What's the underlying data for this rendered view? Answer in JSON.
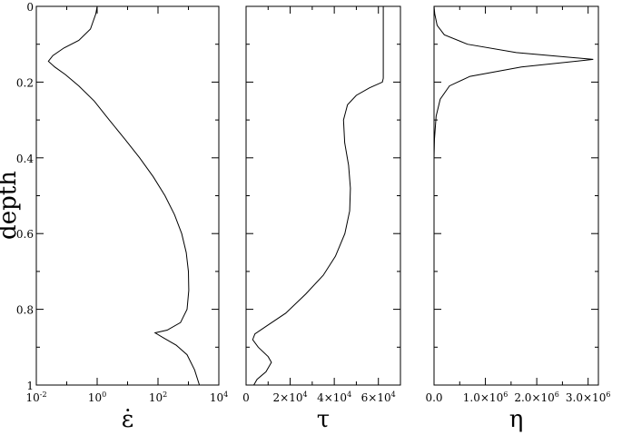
{
  "ylabel": "depth",
  "y_ticks": [
    "0",
    "0.2",
    "0.4",
    "0.6",
    "0.8",
    "1"
  ],
  "chart_data": [
    {
      "type": "line",
      "xlabel": "ε̇",
      "x_scale": "log",
      "xlim": [
        0.01,
        10000
      ],
      "ylim": [
        0,
        1
      ],
      "y_inverted": true,
      "x_ticks": [
        {
          "base": "10",
          "exp": "-2",
          "value": 0.01
        },
        {
          "base": "10",
          "exp": "0",
          "value": 1
        },
        {
          "base": "10",
          "exp": "2",
          "value": 100
        },
        {
          "base": "10",
          "exp": "4",
          "value": 10000
        }
      ],
      "series": [
        {
          "points": [
            [
              1.0,
              0.0
            ],
            [
              0.9,
              0.02
            ],
            [
              0.6,
              0.06
            ],
            [
              0.25,
              0.09
            ],
            [
              0.08,
              0.11
            ],
            [
              0.035,
              0.13
            ],
            [
              0.025,
              0.145
            ],
            [
              0.04,
              0.16
            ],
            [
              0.09,
              0.18
            ],
            [
              0.25,
              0.21
            ],
            [
              0.8,
              0.25
            ],
            [
              2.5,
              0.3
            ],
            [
              8,
              0.35
            ],
            [
              25,
              0.4
            ],
            [
              70,
              0.45
            ],
            [
              170,
              0.5
            ],
            [
              350,
              0.55
            ],
            [
              600,
              0.6
            ],
            [
              850,
              0.65
            ],
            [
              1000,
              0.7
            ],
            [
              1030,
              0.75
            ],
            [
              900,
              0.8
            ],
            [
              550,
              0.835
            ],
            [
              200,
              0.855
            ],
            [
              80,
              0.862
            ],
            [
              150,
              0.875
            ],
            [
              400,
              0.895
            ],
            [
              900,
              0.92
            ],
            [
              1600,
              0.96
            ],
            [
              2300,
              1.0
            ]
          ]
        }
      ]
    },
    {
      "type": "line",
      "xlabel": "τ",
      "xlim": [
        0,
        70000
      ],
      "ylim": [
        0,
        1
      ],
      "y_inverted": true,
      "x_ticks": [
        {
          "text": "0",
          "value": 0
        },
        {
          "mant": "2×10",
          "exp": "4",
          "value": 20000
        },
        {
          "mant": "4×10",
          "exp": "4",
          "value": 40000
        },
        {
          "mant": "6×10",
          "exp": "4",
          "value": 60000
        }
      ],
      "series": [
        {
          "points": [
            [
              62200,
              0.0
            ],
            [
              62200,
              0.19
            ],
            [
              61800,
              0.2
            ],
            [
              56000,
              0.215
            ],
            [
              50000,
              0.235
            ],
            [
              46000,
              0.26
            ],
            [
              44200,
              0.3
            ],
            [
              44700,
              0.36
            ],
            [
              46500,
              0.42
            ],
            [
              47300,
              0.48
            ],
            [
              47000,
              0.54
            ],
            [
              44800,
              0.6
            ],
            [
              40500,
              0.66
            ],
            [
              35000,
              0.71
            ],
            [
              27000,
              0.76
            ],
            [
              18000,
              0.81
            ],
            [
              9000,
              0.845
            ],
            [
              4000,
              0.865
            ],
            [
              3000,
              0.88
            ],
            [
              5500,
              0.9
            ],
            [
              10000,
              0.925
            ],
            [
              11500,
              0.94
            ],
            [
              9000,
              0.965
            ],
            [
              5000,
              0.985
            ],
            [
              3500,
              1.0
            ]
          ]
        }
      ]
    },
    {
      "type": "line",
      "xlabel": "η",
      "xlim": [
        0,
        3200000
      ],
      "ylim": [
        0,
        1
      ],
      "y_inverted": true,
      "x_ticks": [
        {
          "text": "0.0",
          "value": 0
        },
        {
          "mant": "1.0×10",
          "exp": "6",
          "value": 1000000
        },
        {
          "mant": "2.0×10",
          "exp": "6",
          "value": 2000000
        },
        {
          "mant": "3.0×10",
          "exp": "6",
          "value": 3000000
        }
      ],
      "series": [
        {
          "points": [
            [
              0,
              0.0
            ],
            [
              15000,
              0.02
            ],
            [
              60000,
              0.05
            ],
            [
              200000,
              0.075
            ],
            [
              650000,
              0.1
            ],
            [
              1600000,
              0.122
            ],
            [
              3100000,
              0.14
            ],
            [
              1700000,
              0.16
            ],
            [
              700000,
              0.185
            ],
            [
              300000,
              0.21
            ],
            [
              120000,
              0.245
            ],
            [
              40000,
              0.29
            ],
            [
              8000,
              0.35
            ],
            [
              0,
              0.4
            ],
            [
              0,
              1.0
            ]
          ]
        }
      ]
    }
  ]
}
